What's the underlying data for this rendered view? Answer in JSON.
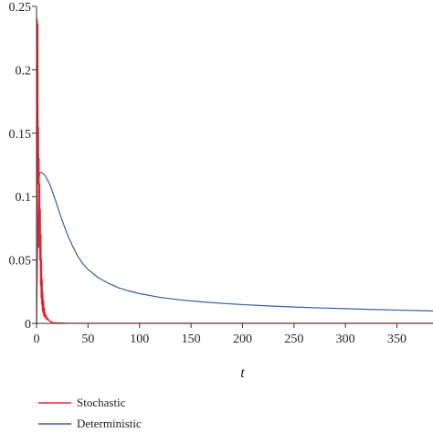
{
  "chart_data": {
    "type": "line",
    "title": "",
    "xlabel": "t",
    "ylabel": "",
    "xlim": [
      0,
      385
    ],
    "ylim": [
      0,
      0.25
    ],
    "xticks": [
      0,
      50,
      100,
      150,
      200,
      250,
      300,
      350
    ],
    "xtick_labels": [
      "0",
      "50",
      "100",
      "150",
      "200",
      "250",
      "300",
      "350"
    ],
    "yticks": [
      0,
      0.05,
      0.1,
      0.15,
      0.2,
      0.25
    ],
    "ytick_labels": [
      "0",
      "0.05",
      "0.1",
      "0.15",
      "0.2",
      "0.25"
    ],
    "grid": false,
    "legend_position": "bottom-left",
    "series": [
      {
        "name": "Stochastic",
        "color": "#e8202a",
        "x": [
          0,
          0.3,
          0.6,
          0.9,
          1.2,
          1.5,
          1.8,
          2.1,
          2.4,
          2.7,
          3.0,
          3.3,
          3.6,
          3.9,
          4.2,
          4.5,
          4.8,
          5.1,
          5.4,
          5.7,
          6.0,
          6.4,
          6.8,
          7.2,
          7.6,
          8.0,
          8.5,
          9.0,
          9.5,
          10,
          11,
          12,
          13,
          14,
          15,
          17,
          20,
          25,
          30,
          50,
          100,
          200,
          300,
          385
        ],
        "y": [
          0.0,
          0.12,
          0.24,
          0.2,
          0.236,
          0.11,
          0.155,
          0.06,
          0.13,
          0.07,
          0.11,
          0.05,
          0.09,
          0.03,
          0.07,
          0.02,
          0.05,
          0.015,
          0.035,
          0.01,
          0.025,
          0.008,
          0.018,
          0.006,
          0.012,
          0.005,
          0.008,
          0.004,
          0.006,
          0.003,
          0.004,
          0.002,
          0.002,
          0.001,
          0.0008,
          0.0005,
          0.0003,
          0.0002,
          0.0,
          0.0,
          0.0,
          0.0,
          0.0,
          0.0
        ]
      },
      {
        "name": "Deterministic",
        "color": "#3a5ba7",
        "x": [
          0,
          1,
          2,
          3,
          4,
          5,
          6,
          8,
          10,
          12,
          15,
          18,
          20,
          25,
          30,
          35,
          40,
          45,
          50,
          60,
          70,
          80,
          90,
          100,
          120,
          140,
          160,
          180,
          200,
          225,
          250,
          275,
          300,
          325,
          350,
          385
        ],
        "y": [
          0.0,
          0.06,
          0.112,
          0.118,
          0.119,
          0.119,
          0.1185,
          0.117,
          0.114,
          0.111,
          0.105,
          0.098,
          0.093,
          0.081,
          0.07,
          0.061,
          0.053,
          0.047,
          0.0425,
          0.036,
          0.0315,
          0.028,
          0.0255,
          0.0235,
          0.0205,
          0.0185,
          0.017,
          0.0158,
          0.0148,
          0.0138,
          0.0129,
          0.0122,
          0.0116,
          0.011,
          0.0105,
          0.0098
        ]
      }
    ]
  }
}
